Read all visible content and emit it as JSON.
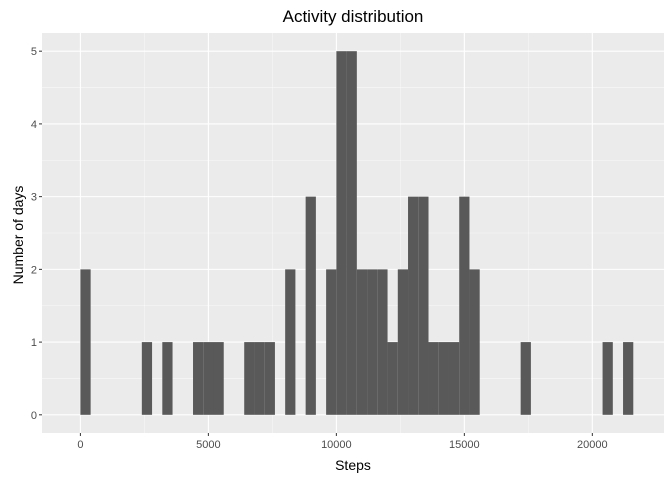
{
  "chart_data": {
    "type": "bar",
    "title": "Activity distribution",
    "xlabel": "Steps",
    "ylabel": "Number of days",
    "xlim": [
      -1500,
      22800
    ],
    "ylim": [
      -0.25,
      5.25
    ],
    "x_ticks": [
      0,
      5000,
      10000,
      15000,
      20000
    ],
    "x_tick_labels": [
      "0",
      "5000",
      "10000",
      "15000",
      "20000"
    ],
    "y_ticks": [
      0,
      1,
      2,
      3,
      4,
      5
    ],
    "y_tick_labels": [
      "0",
      "1",
      "2",
      "3",
      "4",
      "5"
    ],
    "bin_width": 400,
    "bins": [
      {
        "x": 200,
        "count": 2
      },
      {
        "x": 2600,
        "count": 1
      },
      {
        "x": 3400,
        "count": 1
      },
      {
        "x": 4600,
        "count": 1
      },
      {
        "x": 5000,
        "count": 1
      },
      {
        "x": 5400,
        "count": 1
      },
      {
        "x": 6600,
        "count": 1
      },
      {
        "x": 7000,
        "count": 1
      },
      {
        "x": 7400,
        "count": 1
      },
      {
        "x": 8200,
        "count": 2
      },
      {
        "x": 9000,
        "count": 3
      },
      {
        "x": 9800,
        "count": 2
      },
      {
        "x": 10200,
        "count": 5
      },
      {
        "x": 10600,
        "count": 5
      },
      {
        "x": 11000,
        "count": 2
      },
      {
        "x": 11400,
        "count": 2
      },
      {
        "x": 11800,
        "count": 2
      },
      {
        "x": 12200,
        "count": 1
      },
      {
        "x": 12600,
        "count": 2
      },
      {
        "x": 13000,
        "count": 3
      },
      {
        "x": 13400,
        "count": 3
      },
      {
        "x": 13800,
        "count": 1
      },
      {
        "x": 14200,
        "count": 1
      },
      {
        "x": 14600,
        "count": 1
      },
      {
        "x": 15000,
        "count": 3
      },
      {
        "x": 15400,
        "count": 2
      },
      {
        "x": 17400,
        "count": 1
      },
      {
        "x": 20600,
        "count": 1
      },
      {
        "x": 21400,
        "count": 1
      }
    ],
    "grid": true,
    "colors": {
      "bar": "#595959",
      "panel": "#ebebeb",
      "grid_major": "#ffffff"
    }
  }
}
